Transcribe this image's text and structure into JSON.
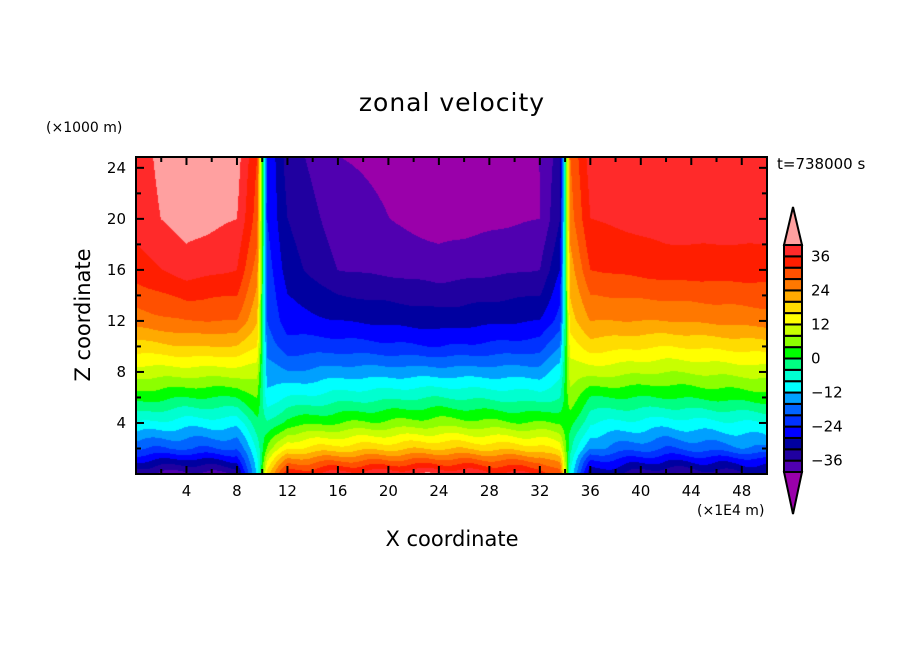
{
  "chart_data": {
    "type": "heatmap",
    "title": "zonal velocity",
    "xlabel": "X coordinate",
    "ylabel": "Z coordinate",
    "x_unit": "(×1E4 m)",
    "y_unit": "(×1000 m)",
    "annotation": "t=738000 s",
    "xlim": [
      0,
      50
    ],
    "ylim": [
      0,
      24.85
    ],
    "xticks": [
      4,
      8,
      12,
      16,
      20,
      24,
      28,
      32,
      36,
      40,
      44,
      48
    ],
    "yticks": [
      4,
      8,
      12,
      16,
      20,
      24
    ],
    "contour_levels": [
      -40,
      -36,
      -32,
      -28,
      -24,
      -20,
      -16,
      -12,
      -8,
      -4,
      0,
      4,
      8,
      12,
      16,
      20,
      24,
      28,
      32,
      36,
      40
    ],
    "colorbar_labels": [
      36,
      24,
      12,
      0,
      -12,
      -24,
      -36
    ],
    "colors": [
      "#9a00aa",
      "#5000b0",
      "#2000a0",
      "#0000a0",
      "#0000ff",
      "#0032ff",
      "#0064ff",
      "#00a0ff",
      "#00ffff",
      "#00ffd0",
      "#00ff82",
      "#00ff00",
      "#8cff00",
      "#c8ff00",
      "#ffff00",
      "#ffdc00",
      "#ffaa00",
      "#ff7800",
      "#ff5000",
      "#ff1e00",
      "#ff2a2a",
      "#ffa0a0"
    ],
    "grid_x": [
      0,
      4,
      8,
      9.6,
      10.4,
      12,
      16,
      24,
      32,
      33.6,
      34.4,
      36,
      42,
      50
    ],
    "grid_z": [
      0,
      1,
      2,
      4,
      6,
      8,
      10,
      12,
      16,
      20,
      25
    ],
    "values": [
      [
        -36,
        -28,
        -20,
        -8,
        2,
        10,
        18,
        26,
        34,
        38,
        38
      ],
      [
        -38,
        -30,
        -20,
        -10,
        0,
        10,
        20,
        28,
        38,
        42,
        44
      ],
      [
        -36,
        -28,
        -20,
        -10,
        0,
        10,
        20,
        28,
        36,
        40,
        42
      ],
      [
        -10,
        -8,
        -6,
        -2,
        4,
        10,
        16,
        20,
        26,
        30,
        32
      ],
      [
        20,
        12,
        4,
        -4,
        -10,
        -14,
        -18,
        -20,
        -22,
        -24,
        -24
      ],
      [
        34,
        26,
        16,
        2,
        -8,
        -16,
        -22,
        -26,
        -30,
        -32,
        -34
      ],
      [
        38,
        28,
        18,
        4,
        -6,
        -14,
        -22,
        -28,
        -36,
        -38,
        -40
      ],
      [
        40,
        30,
        20,
        6,
        -4,
        -14,
        -24,
        -30,
        -38,
        -42,
        -42
      ],
      [
        36,
        28,
        18,
        4,
        -6,
        -14,
        -22,
        -28,
        -36,
        -40,
        -40
      ],
      [
        30,
        22,
        14,
        4,
        -4,
        -10,
        -16,
        -22,
        -28,
        -32,
        -34
      ],
      [
        -10,
        -6,
        -2,
        2,
        6,
        10,
        14,
        18,
        22,
        26,
        28
      ],
      [
        -30,
        -24,
        -16,
        -8,
        0,
        10,
        18,
        24,
        32,
        36,
        38
      ],
      [
        -36,
        -28,
        -20,
        -10,
        0,
        8,
        16,
        24,
        34,
        38,
        40
      ],
      [
        -32,
        -26,
        -16,
        -8,
        2,
        10,
        18,
        26,
        34,
        38,
        38
      ]
    ]
  }
}
